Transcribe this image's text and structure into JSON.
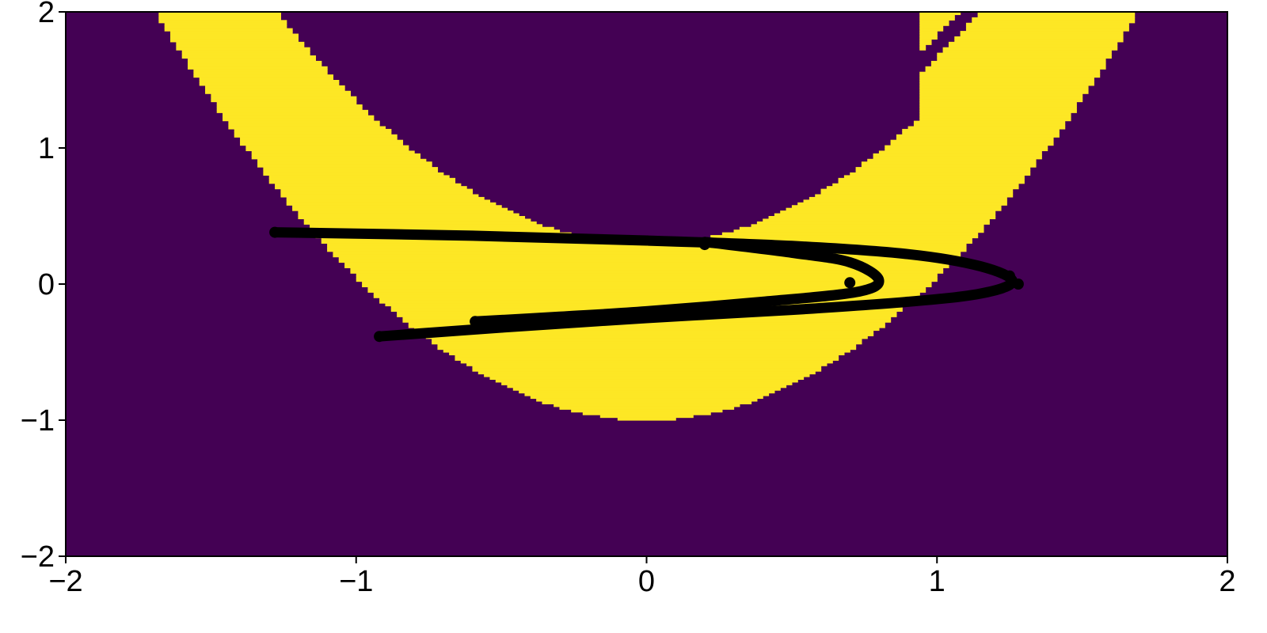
{
  "chart_data": {
    "type": "heatmap",
    "title": "",
    "xlabel": "",
    "ylabel": "",
    "xlim": [
      -2,
      2
    ],
    "ylim": [
      -2,
      2
    ],
    "grid": false,
    "x_ticks": [
      "−2",
      "−1",
      "0",
      "1",
      "2"
    ],
    "y_ticks": [
      "−2",
      "−1",
      "0",
      "1",
      "2"
    ],
    "x_tick_values": [
      -2,
      -1,
      0,
      1,
      2
    ],
    "y_tick_values": [
      -2,
      -1,
      0,
      1,
      2
    ],
    "heatmap": {
      "resolution": 0.02,
      "colors": {
        "low": "#440154",
        "high": "#fde725"
      },
      "regions": [
        {
          "name": "main-basin",
          "parabola_a": 1.05,
          "low_shift": -1.0,
          "high_shift": 0.3
        },
        {
          "name": "outer-branch",
          "parabola_a": 1.05,
          "low_shift": 0.3,
          "high_shift": 1.5,
          "x_min": 0.95
        }
      ],
      "gap_band": {
        "parabola_a": 1.05,
        "low_shift": 0.62,
        "high_shift": 0.78,
        "x_min": 0.95
      }
    },
    "trajectory": {
      "color": "#000000",
      "segments": [
        {
          "points": [
            [
              -1.28,
              0.38
            ],
            [
              -0.6,
              0.355
            ],
            [
              0.0,
              0.32
            ],
            [
              0.5,
              0.28
            ],
            [
              0.9,
              0.22
            ],
            [
              1.15,
              0.13
            ],
            [
              1.26,
              0.02
            ],
            [
              1.15,
              -0.07
            ],
            [
              0.9,
              -0.13
            ],
            [
              0.5,
              -0.19
            ],
            [
              0.0,
              -0.25
            ],
            [
              -0.5,
              -0.32
            ],
            [
              -0.92,
              -0.385
            ]
          ]
        },
        {
          "points": [
            [
              0.2,
              0.31
            ],
            [
              0.5,
              0.23
            ],
            [
              0.7,
              0.16
            ],
            [
              0.8,
              0.03
            ],
            [
              0.72,
              -0.06
            ],
            [
              0.4,
              -0.13
            ],
            [
              0.0,
              -0.2
            ],
            [
              -0.3,
              -0.24
            ],
            [
              -0.59,
              -0.275
            ]
          ]
        }
      ],
      "markers": [
        [
          0.2,
          0.29
        ],
        [
          1.25,
          0.06
        ],
        [
          0.7,
          0.01
        ],
        [
          -0.92,
          -0.385
        ],
        [
          -0.59,
          -0.275
        ],
        [
          -1.28,
          0.38
        ],
        [
          1.28,
          0.0
        ],
        [
          0.22,
          -0.17
        ]
      ]
    }
  }
}
